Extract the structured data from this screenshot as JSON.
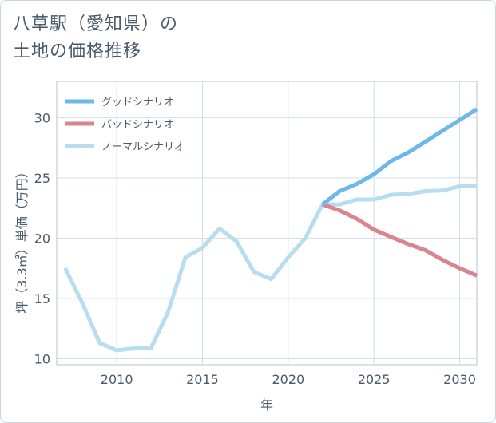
{
  "title_line1": "八草駅（愛知県）の",
  "title_line2": "土地の価格推移",
  "chart_data": {
    "type": "line",
    "xlabel": "年",
    "ylabel": "坪（3.3㎡）単価（万円）",
    "xlim": [
      2006.5,
      2031
    ],
    "ylim": [
      9.5,
      33
    ],
    "xticks": [
      2010,
      2015,
      2020,
      2025,
      2030
    ],
    "yticks": [
      10,
      15,
      20,
      25,
      30
    ],
    "grid": true,
    "legend_position": "top-left",
    "series": [
      {
        "name": "グッドシナリオ",
        "color": "#6cb8ea",
        "points": [
          [
            2022,
            22.8
          ],
          [
            2023,
            23.9
          ],
          [
            2024,
            24.5
          ],
          [
            2025,
            25.3
          ],
          [
            2026,
            26.4
          ],
          [
            2027,
            27.1
          ],
          [
            2028,
            28.0
          ],
          [
            2029,
            28.9
          ],
          [
            2030,
            29.8
          ],
          [
            2031,
            30.7
          ]
        ]
      },
      {
        "name": "バッドシナリオ",
        "color": "#d9858f",
        "points": [
          [
            2022,
            22.8
          ],
          [
            2023,
            22.3
          ],
          [
            2024,
            21.6
          ],
          [
            2025,
            20.7
          ],
          [
            2026,
            20.1
          ],
          [
            2027,
            19.5
          ],
          [
            2028,
            19.0
          ],
          [
            2029,
            18.2
          ],
          [
            2030,
            17.5
          ],
          [
            2031,
            16.9
          ]
        ]
      },
      {
        "name": "ノーマルシナリオ",
        "color": "#b8ddef",
        "points": [
          [
            2007,
            17.5
          ],
          [
            2008,
            14.6
          ],
          [
            2009,
            11.3
          ],
          [
            2010,
            10.7
          ],
          [
            2011,
            10.85
          ],
          [
            2012,
            10.9
          ],
          [
            2013,
            13.9
          ],
          [
            2014,
            18.4
          ],
          [
            2015,
            19.2
          ],
          [
            2016,
            20.8
          ],
          [
            2017,
            19.7
          ],
          [
            2018,
            17.2
          ],
          [
            2019,
            16.6
          ],
          [
            2020,
            18.4
          ],
          [
            2021,
            20.0
          ],
          [
            2022,
            22.8
          ],
          [
            2023,
            22.8
          ],
          [
            2024,
            23.2
          ],
          [
            2025,
            23.2
          ],
          [
            2026,
            23.6
          ],
          [
            2027,
            23.65
          ],
          [
            2028,
            23.9
          ],
          [
            2029,
            23.95
          ],
          [
            2030,
            24.3
          ],
          [
            2031,
            24.35
          ]
        ]
      }
    ]
  }
}
